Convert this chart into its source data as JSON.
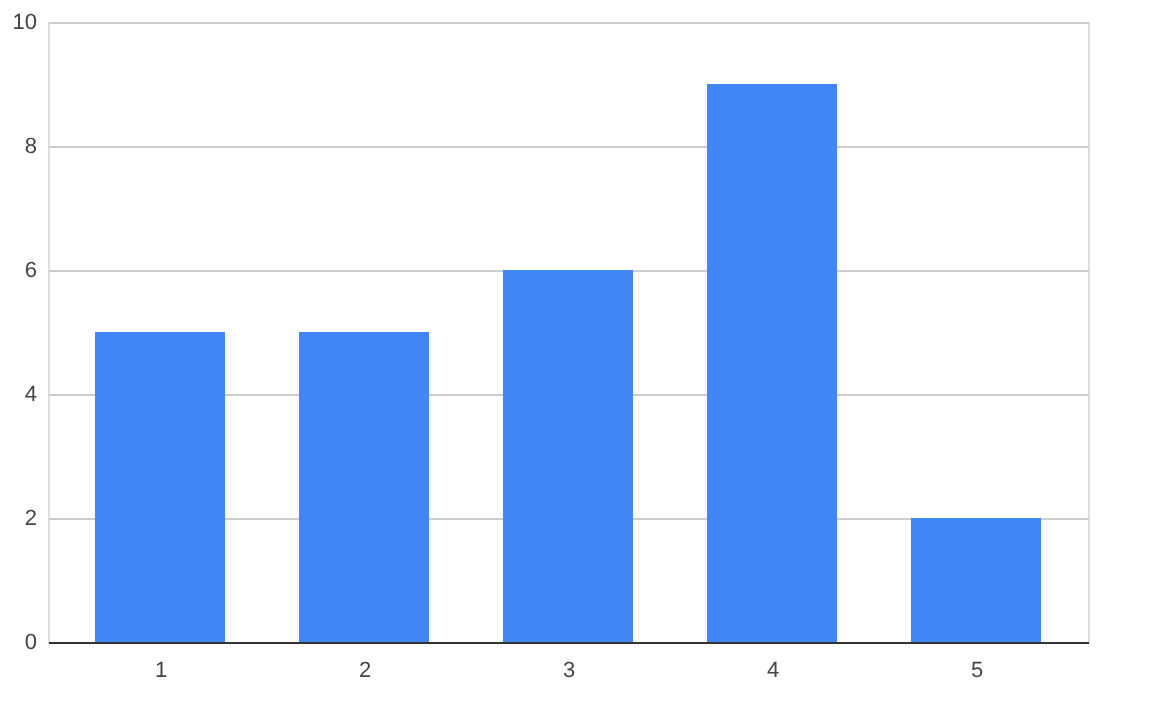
{
  "chart_data": {
    "type": "bar",
    "categories": [
      "1",
      "2",
      "3",
      "4",
      "5"
    ],
    "values": [
      5,
      5,
      6,
      9,
      2
    ],
    "color": "#4285f4",
    "ylim": [
      0,
      10
    ],
    "yticks": [
      0,
      2,
      4,
      6,
      8,
      10
    ],
    "grid": "y"
  }
}
